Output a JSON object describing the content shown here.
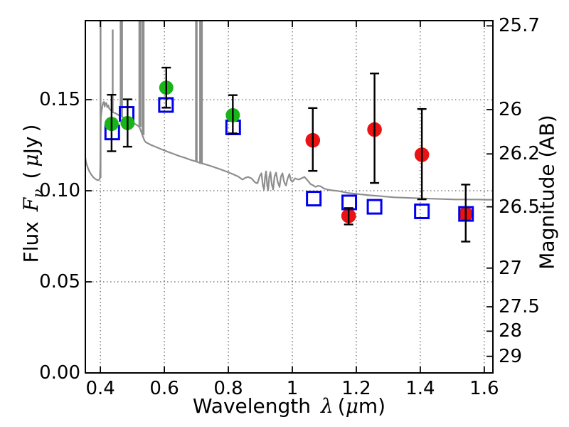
{
  "labels": {
    "x": {
      "word": "Wavelength",
      "lambda": "λ",
      "open": "(",
      "mu": "μ",
      "close": "m)"
    },
    "y_left": {
      "word": "Flux",
      "f": "F",
      "sub": "ν",
      "open": "(",
      "mu": "μ",
      "unit": "Jy",
      "close": ")"
    },
    "y_right": "Magnitude (AB)"
  },
  "x_tick_labels": [
    {
      "v": 0.4,
      "t": "0.4"
    },
    {
      "v": 0.6,
      "t": "0.6"
    },
    {
      "v": 0.8,
      "t": "0.8"
    },
    {
      "v": 1.0,
      "t": "1"
    },
    {
      "v": 1.2,
      "t": "1.2"
    },
    {
      "v": 1.4,
      "t": "1.4"
    },
    {
      "v": 1.6,
      "t": "1.6"
    }
  ],
  "flux_tick_labels": [
    {
      "v": 0.0,
      "t": "0.00"
    },
    {
      "v": 0.05,
      "t": "0.05"
    },
    {
      "v": 0.1,
      "t": "0.10"
    },
    {
      "v": 0.15,
      "t": "0.15"
    }
  ],
  "mag_tick_labels": [
    {
      "m": 25.7,
      "t": "25.7"
    },
    {
      "m": 26.0,
      "t": "26"
    },
    {
      "m": 26.2,
      "t": "26.2"
    },
    {
      "m": 26.5,
      "t": "26.5"
    },
    {
      "m": 27.0,
      "t": "27"
    },
    {
      "m": 27.5,
      "t": "27.5"
    },
    {
      "m": 28.0,
      "t": "28"
    },
    {
      "m": 29.0,
      "t": "29"
    }
  ],
  "chart_data": {
    "type": "scatter",
    "title": "",
    "xlabel": "Wavelength λ (μm)",
    "ylabel_left": "Flux Fν ( μJy )",
    "ylabel_right": "Magnitude (AB)",
    "xlim": [
      0.353,
      1.627
    ],
    "ylim_flux": [
      0,
      0.1934
    ],
    "x_ticks": [
      0.4,
      0.6,
      0.8,
      1.0,
      1.2,
      1.4,
      1.6
    ],
    "y_ticks_flux": [
      0.0,
      0.05,
      0.1,
      0.15
    ],
    "y_ticks_mag": [
      25.7,
      26.0,
      26.2,
      26.5,
      27.0,
      27.5,
      28.0,
      29.0
    ],
    "grid": "dotted at major ticks of bottom and left axes",
    "colors": {
      "green": "#18b418",
      "red": "#ea1313",
      "blue": "#0000ee",
      "spectrum_gray": "#8e8e8e",
      "errorbar": "#000000"
    },
    "series": [
      {
        "name": "green-circles-photometry",
        "marker": "filled-circle",
        "color": "#18b418",
        "points": [
          {
            "x": 0.435,
            "y": 0.1367,
            "yerr_plus": 0.016,
            "yerr_minus": 0.015
          },
          {
            "x": 0.485,
            "y": 0.1372,
            "yerr_plus": 0.013,
            "yerr_minus": 0.013
          },
          {
            "x": 0.606,
            "y": 0.1566,
            "yerr_plus": 0.011,
            "yerr_minus": 0.011
          },
          {
            "x": 0.814,
            "y": 0.1415,
            "yerr_plus": 0.011,
            "yerr_minus": 0.01
          }
        ]
      },
      {
        "name": "red-circles-photometry",
        "marker": "filled-circle",
        "color": "#ea1313",
        "points": [
          {
            "x": 1.064,
            "y": 0.1277,
            "yerr_plus": 0.0177,
            "yerr_minus": 0.0168
          },
          {
            "x": 1.176,
            "y": 0.0862,
            "yerr_plus": 0.0043,
            "yerr_minus": 0.0047
          },
          {
            "x": 1.257,
            "y": 0.1336,
            "yerr_plus": 0.0308,
            "yerr_minus": 0.0293
          },
          {
            "x": 1.405,
            "y": 0.1198,
            "yerr_plus": 0.0251,
            "yerr_minus": 0.0245
          },
          {
            "x": 1.542,
            "y": 0.0872,
            "yerr_plus": 0.0162,
            "yerr_minus": 0.0151
          }
        ]
      },
      {
        "name": "blue-open-squares-model-photometry",
        "marker": "open-square",
        "color": "#0000ee",
        "points": [
          {
            "x": 0.437,
            "y": 0.132
          },
          {
            "x": 0.482,
            "y": 0.1422
          },
          {
            "x": 0.605,
            "y": 0.1471
          },
          {
            "x": 0.815,
            "y": 0.1348
          },
          {
            "x": 1.067,
            "y": 0.0957
          },
          {
            "x": 1.178,
            "y": 0.0936
          },
          {
            "x": 1.257,
            "y": 0.0912
          },
          {
            "x": 1.405,
            "y": 0.0887
          },
          {
            "x": 1.543,
            "y": 0.0873
          }
        ]
      },
      {
        "name": "model-spectrum",
        "marker": "line",
        "color": "#8e8e8e",
        "points": [
          [
            0.353,
            0.118
          ],
          [
            0.356,
            0.1152
          ],
          [
            0.36,
            0.113
          ],
          [
            0.365,
            0.1108
          ],
          [
            0.371,
            0.109
          ],
          [
            0.378,
            0.1074
          ],
          [
            0.385,
            0.1064
          ],
          [
            0.391,
            0.1058
          ],
          [
            0.396,
            0.106
          ],
          [
            0.3985,
            0.1068
          ],
          [
            0.3995,
            0.112
          ],
          [
            0.4005,
            0.13
          ],
          [
            0.4015,
            0.14
          ],
          [
            0.4035,
            0.1435
          ],
          [
            0.406,
            0.1462
          ],
          [
            0.409,
            0.1485
          ],
          [
            0.4115,
            0.1488
          ],
          [
            0.4135,
            0.1462
          ],
          [
            0.4155,
            0.1478
          ],
          [
            0.4185,
            0.1482
          ],
          [
            0.4215,
            0.1458
          ],
          [
            0.4245,
            0.1469
          ],
          [
            0.4275,
            0.1452
          ],
          [
            0.431,
            0.1445
          ],
          [
            0.4355,
            0.1438
          ],
          [
            0.44,
            0.143
          ],
          [
            0.4465,
            0.1426
          ],
          [
            0.4525,
            0.142
          ],
          [
            0.459,
            0.1413
          ],
          [
            0.4665,
            0.1407
          ],
          [
            0.4745,
            0.1399
          ],
          [
            0.483,
            0.1389
          ],
          [
            0.492,
            0.1381
          ],
          [
            0.501,
            0.1373
          ],
          [
            0.51,
            0.1365
          ],
          [
            0.5165,
            0.1358
          ],
          [
            0.521,
            0.1352
          ],
          [
            0.5265,
            0.133
          ],
          [
            0.5325,
            0.13
          ],
          [
            0.538,
            0.1275
          ],
          [
            0.5425,
            0.1266
          ],
          [
            0.549,
            0.126
          ],
          [
            0.558,
            0.1252
          ],
          [
            0.569,
            0.1244
          ],
          [
            0.581,
            0.1235
          ],
          [
            0.595,
            0.1225
          ],
          [
            0.611,
            0.1214
          ],
          [
            0.628,
            0.1203
          ],
          [
            0.646,
            0.1191
          ],
          [
            0.664,
            0.1181
          ],
          [
            0.681,
            0.117
          ],
          [
            0.698,
            0.1161
          ],
          [
            0.716,
            0.1151
          ],
          [
            0.734,
            0.1142
          ],
          [
            0.753,
            0.1131
          ],
          [
            0.773,
            0.1119
          ],
          [
            0.793,
            0.1106
          ],
          [
            0.813,
            0.1092
          ],
          [
            0.831,
            0.1078
          ],
          [
            0.8445,
            0.1061
          ],
          [
            0.8525,
            0.1071
          ],
          [
            0.862,
            0.1076
          ],
          [
            0.873,
            0.1067
          ],
          [
            0.8835,
            0.1046
          ],
          [
            0.891,
            0.1041
          ],
          [
            0.898,
            0.108
          ],
          [
            0.9035,
            0.1096
          ],
          [
            0.908,
            0.1028
          ],
          [
            0.9115,
            0.1007
          ],
          [
            0.915,
            0.1078
          ],
          [
            0.918,
            0.1107
          ],
          [
            0.9215,
            0.1028
          ],
          [
            0.9245,
            0.1003
          ],
          [
            0.928,
            0.1078
          ],
          [
            0.9315,
            0.1103
          ],
          [
            0.9355,
            0.1038
          ],
          [
            0.94,
            0.1007
          ],
          [
            0.9445,
            0.1078
          ],
          [
            0.949,
            0.11
          ],
          [
            0.9545,
            0.1048
          ],
          [
            0.96,
            0.1021
          ],
          [
            0.9645,
            0.1078
          ],
          [
            0.969,
            0.1096
          ],
          [
            0.9745,
            0.1048
          ],
          [
            0.98,
            0.1029
          ],
          [
            0.9855,
            0.1068
          ],
          [
            0.991,
            0.1092
          ],
          [
            0.9955,
            0.1058
          ],
          [
            1.0,
            0.1049
          ],
          [
            1.009,
            0.1068
          ],
          [
            1.02,
            0.1061
          ],
          [
            1.038,
            0.1076
          ],
          [
            1.048,
            0.1056
          ],
          [
            1.057,
            0.1037
          ],
          [
            1.065,
            0.103
          ],
          [
            1.073,
            0.1021
          ],
          [
            1.08,
            0.1027
          ],
          [
            1.088,
            0.1025
          ],
          [
            1.098,
            0.1013
          ],
          [
            1.11,
            0.1006
          ],
          [
            1.125,
            0.1002
          ],
          [
            1.142,
            0.0999
          ],
          [
            1.16,
            0.0993
          ],
          [
            1.177,
            0.0987
          ],
          [
            1.198,
            0.0983
          ],
          [
            1.22,
            0.0979
          ],
          [
            1.243,
            0.0975
          ],
          [
            1.265,
            0.0972
          ],
          [
            1.29,
            0.0968
          ],
          [
            1.32,
            0.0964
          ],
          [
            1.35,
            0.0962
          ],
          [
            1.377,
            0.096
          ],
          [
            1.41,
            0.0958
          ],
          [
            1.443,
            0.0956
          ],
          [
            1.476,
            0.0954
          ],
          [
            1.51,
            0.0952
          ],
          [
            1.545,
            0.0952
          ],
          [
            1.58,
            0.0952
          ],
          [
            1.605,
            0.0951
          ],
          [
            1.627,
            0.0951
          ]
        ],
        "emission_spikes": [
          {
            "x": 0.4005,
            "base": 0.107,
            "top": 0.21,
            "w": 2.5,
            "clipped_at_top": true
          },
          {
            "x": 0.4385,
            "base": 0.1432,
            "top": 0.1885,
            "w": 2.5,
            "clipped_at_top": false
          },
          {
            "x": 0.4655,
            "base": 0.1405,
            "top": 0.21,
            "w": 4.5,
            "clipped_at_top": true
          },
          {
            "x": 0.5235,
            "base": 0.135,
            "top": 0.21,
            "w": 4.0,
            "clipped_at_top": true
          },
          {
            "x": 0.5335,
            "base": 0.1305,
            "top": 0.21,
            "w": 4.0,
            "clipped_at_top": true
          },
          {
            "x": 0.7,
            "base": 0.116,
            "top": 0.21,
            "w": 3.5,
            "clipped_at_top": true
          },
          {
            "x": 0.7145,
            "base": 0.1148,
            "top": 0.21,
            "w": 5.0,
            "clipped_at_top": true
          }
        ]
      }
    ]
  }
}
